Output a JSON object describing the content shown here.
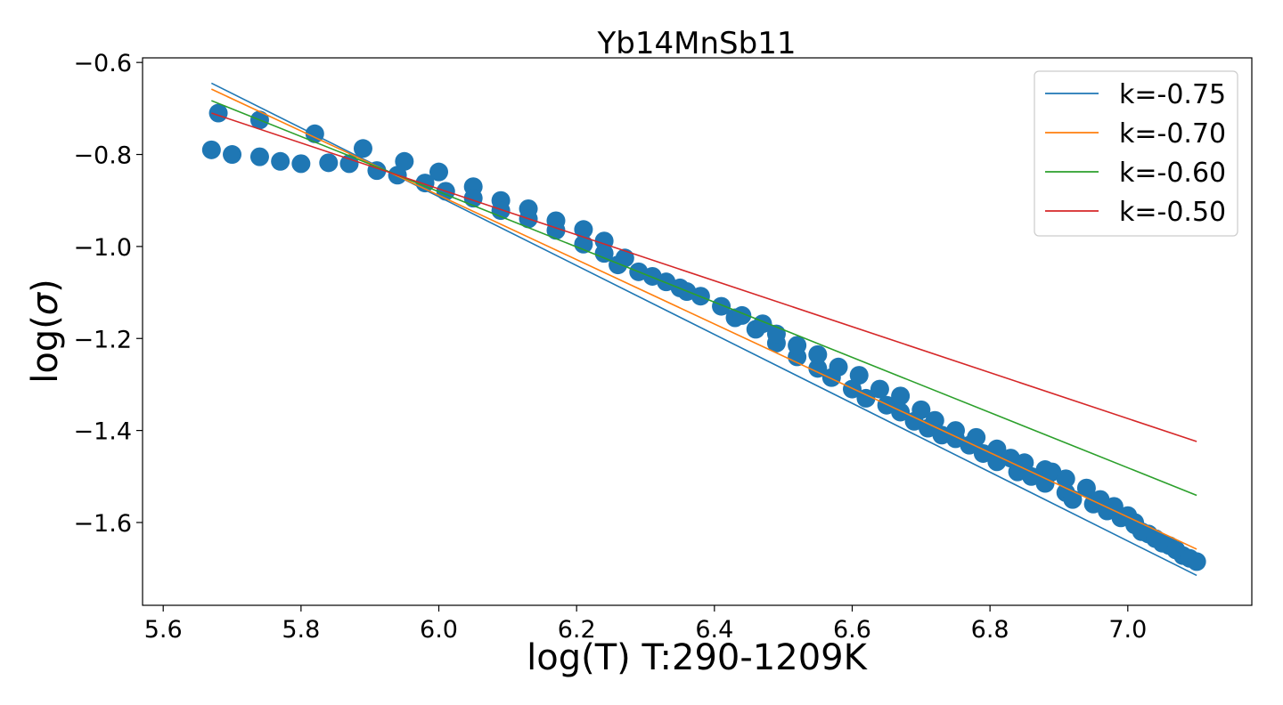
{
  "chart_data": {
    "type": "scatter",
    "title": "Yb14MnSb11",
    "xlabel": "log(T) T:290-1209K",
    "ylabel_main": "log(",
    "ylabel_symbol": "σ",
    "ylabel_end": ")",
    "xlim": [
      5.57,
      7.18
    ],
    "ylim": [
      -1.78,
      -0.59
    ],
    "xticks": [
      5.6,
      5.8,
      6.0,
      6.2,
      6.4,
      6.6,
      6.8,
      7.0
    ],
    "xtick_labels": [
      "5.6",
      "5.8",
      "6.0",
      "6.2",
      "6.4",
      "6.6",
      "6.8",
      "7.0"
    ],
    "yticks": [
      -0.6,
      -0.8,
      -1.0,
      -1.2,
      -1.4,
      -1.6
    ],
    "ytick_labels": [
      "−0.6",
      "−0.8",
      "−1.0",
      "−1.2",
      "−1.4",
      "−1.6"
    ],
    "grid": false,
    "legend_position": "top-right",
    "marker_color": "#1f77b4",
    "points": [
      [
        5.67,
        -0.79
      ],
      [
        5.68,
        -0.71
      ],
      [
        5.7,
        -0.8
      ],
      [
        5.74,
        -0.725
      ],
      [
        5.74,
        -0.805
      ],
      [
        5.77,
        -0.815
      ],
      [
        5.8,
        -0.82
      ],
      [
        5.82,
        -0.755
      ],
      [
        5.84,
        -0.818
      ],
      [
        5.87,
        -0.82
      ],
      [
        5.89,
        -0.787
      ],
      [
        5.91,
        -0.835
      ],
      [
        5.94,
        -0.845
      ],
      [
        5.95,
        -0.815
      ],
      [
        5.98,
        -0.862
      ],
      [
        6.0,
        -0.838
      ],
      [
        6.01,
        -0.88
      ],
      [
        6.05,
        -0.87
      ],
      [
        6.05,
        -0.895
      ],
      [
        6.09,
        -0.9
      ],
      [
        6.09,
        -0.922
      ],
      [
        6.13,
        -0.918
      ],
      [
        6.13,
        -0.94
      ],
      [
        6.17,
        -0.944
      ],
      [
        6.17,
        -0.965
      ],
      [
        6.21,
        -0.963
      ],
      [
        6.21,
        -0.995
      ],
      [
        6.24,
        -0.988
      ],
      [
        6.24,
        -1.015
      ],
      [
        6.26,
        -1.04
      ],
      [
        6.27,
        -1.025
      ],
      [
        6.29,
        -1.055
      ],
      [
        6.31,
        -1.065
      ],
      [
        6.33,
        -1.077
      ],
      [
        6.35,
        -1.09
      ],
      [
        6.36,
        -1.098
      ],
      [
        6.38,
        -1.108
      ],
      [
        6.41,
        -1.13
      ],
      [
        6.43,
        -1.155
      ],
      [
        6.44,
        -1.15
      ],
      [
        6.46,
        -1.18
      ],
      [
        6.47,
        -1.168
      ],
      [
        6.49,
        -1.21
      ],
      [
        6.49,
        -1.19
      ],
      [
        6.52,
        -1.24
      ],
      [
        6.52,
        -1.215
      ],
      [
        6.55,
        -1.265
      ],
      [
        6.55,
        -1.235
      ],
      [
        6.57,
        -1.285
      ],
      [
        6.58,
        -1.262
      ],
      [
        6.6,
        -1.31
      ],
      [
        6.61,
        -1.28
      ],
      [
        6.62,
        -1.33
      ],
      [
        6.64,
        -1.31
      ],
      [
        6.65,
        -1.345
      ],
      [
        6.67,
        -1.325
      ],
      [
        6.67,
        -1.36
      ],
      [
        6.69,
        -1.38
      ],
      [
        6.7,
        -1.355
      ],
      [
        6.71,
        -1.395
      ],
      [
        6.72,
        -1.378
      ],
      [
        6.73,
        -1.41
      ],
      [
        6.75,
        -1.418
      ],
      [
        6.75,
        -1.4
      ],
      [
        6.77,
        -1.432
      ],
      [
        6.78,
        -1.415
      ],
      [
        6.79,
        -1.45
      ],
      [
        6.81,
        -1.44
      ],
      [
        6.81,
        -1.468
      ],
      [
        6.83,
        -1.46
      ],
      [
        6.84,
        -1.49
      ],
      [
        6.85,
        -1.47
      ],
      [
        6.86,
        -1.5
      ],
      [
        6.88,
        -1.485
      ],
      [
        6.88,
        -1.515
      ],
      [
        6.89,
        -1.49
      ],
      [
        6.91,
        -1.535
      ],
      [
        6.91,
        -1.505
      ],
      [
        6.92,
        -1.55
      ],
      [
        6.94,
        -1.525
      ],
      [
        6.95,
        -1.56
      ],
      [
        6.96,
        -1.55
      ],
      [
        6.97,
        -1.575
      ],
      [
        6.98,
        -1.565
      ],
      [
        6.99,
        -1.59
      ],
      [
        7.0,
        -1.585
      ],
      [
        7.01,
        -1.605
      ],
      [
        7.01,
        -1.6
      ],
      [
        7.02,
        -1.62
      ],
      [
        7.03,
        -1.625
      ],
      [
        7.04,
        -1.635
      ],
      [
        7.05,
        -1.645
      ],
      [
        7.06,
        -1.65
      ],
      [
        7.07,
        -1.66
      ],
      [
        7.08,
        -1.672
      ],
      [
        7.09,
        -1.678
      ],
      [
        7.1,
        -1.685
      ]
    ],
    "series": [
      {
        "name": "k=-0.75",
        "color": "#1f77b4",
        "x": [
          5.67,
          7.1
        ],
        "y": [
          -0.645,
          -1.715
        ]
      },
      {
        "name": "k=-0.70",
        "color": "#ff7f0e",
        "x": [
          5.67,
          7.1
        ],
        "y": [
          -0.658,
          -1.658
        ]
      },
      {
        "name": "k=-0.60",
        "color": "#2ca02c",
        "x": [
          5.67,
          7.1
        ],
        "y": [
          -0.683,
          -1.541
        ]
      },
      {
        "name": "k=-0.50",
        "color": "#d62728",
        "x": [
          5.67,
          7.1
        ],
        "y": [
          -0.71,
          -1.424
        ]
      }
    ]
  }
}
